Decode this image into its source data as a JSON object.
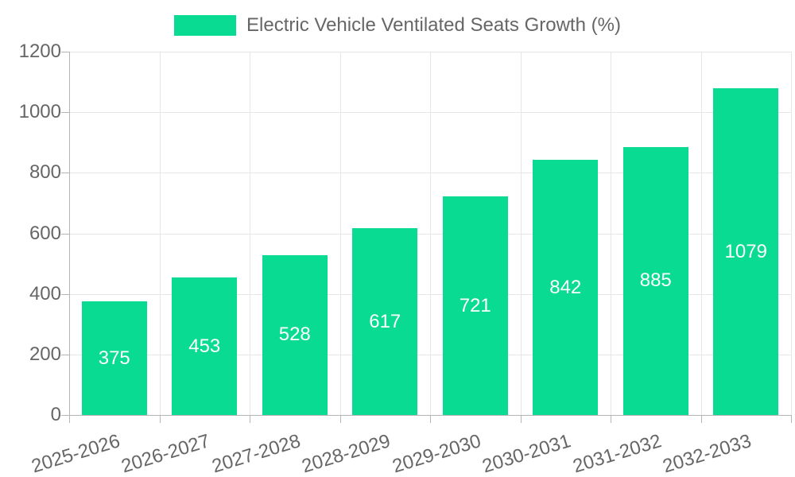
{
  "chart_data": {
    "type": "bar",
    "title": "Electric Vehicle Ventilated Seats Growth (%)",
    "categories": [
      "2025-2026",
      "2026-2027",
      "2027-2028",
      "2028-2029",
      "2029-2030",
      "2030-2031",
      "2031-2032",
      "2032-2033"
    ],
    "values": [
      375,
      453,
      528,
      617,
      721,
      842,
      885,
      1079
    ],
    "series": [
      {
        "name": "Electric Vehicle Ventilated Seats Growth (%)",
        "values": [
          375,
          453,
          528,
          617,
          721,
          842,
          885,
          1079
        ]
      }
    ],
    "xlabel": "",
    "ylabel": "",
    "ylim": [
      0,
      1200
    ],
    "yticks": [
      0,
      200,
      400,
      600,
      800,
      1000,
      1200
    ],
    "grid": true,
    "legend_position": "top",
    "bar_color": "#09db92",
    "value_label_color": "#ffffff",
    "axis_text_color": "#666666",
    "gridline_color": "#e6e6e6",
    "axis_line_color": "#b5b5b5"
  },
  "legend": {
    "label": "Electric Vehicle Ventilated Seats Growth (%)"
  }
}
